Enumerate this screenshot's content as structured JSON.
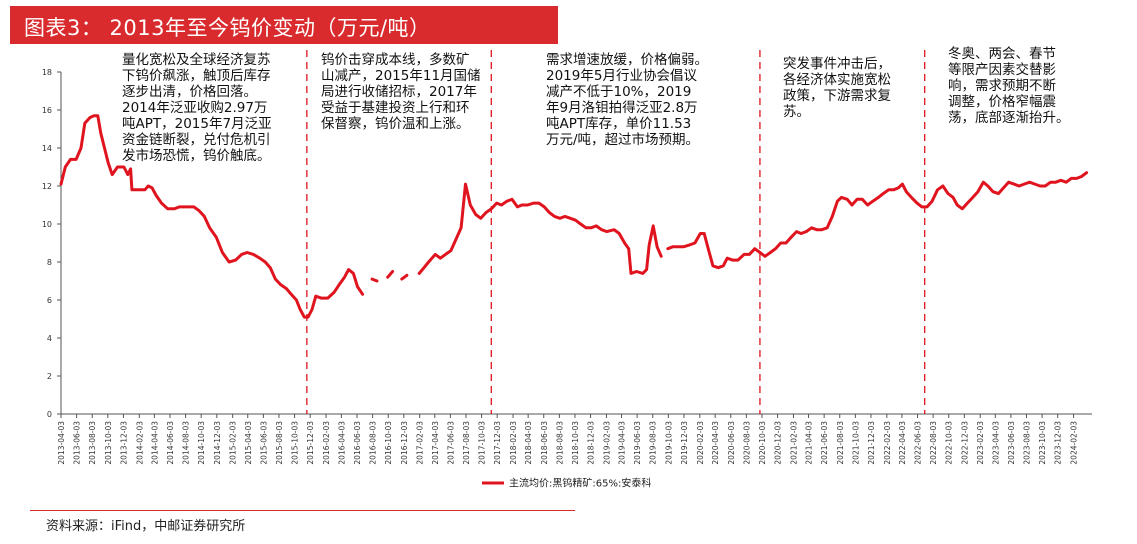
{
  "header": {
    "title": "图表3： 2013年至今钨价变动（万元/吨）"
  },
  "source": "资料来源：iFind，中邮证券研究所",
  "annotations": [
    {
      "lines": [
        "量化宽松及全球经济复苏",
        "下钨价飙涨，触顶后库存",
        "逐步出清，价格回落。",
        "2014年泛亚收购2.97万",
        "吨APT，2015年7月泛亚",
        "资金链断裂，兑付危机引",
        "发市场恐慌，钨价触底。"
      ]
    },
    {
      "lines": [
        "钨价击穿成本线，多数矿",
        "山减产，2015年11月国储",
        "局进行收储招标，2017年",
        "受益于基建投资上行和环",
        "保督察，钨价温和上涨。"
      ]
    },
    {
      "lines": [
        "需求增速放缓，价格偏弱。",
        "2019年5月行业协会倡议",
        "减产不低于10%，2019",
        "年9月洛钼拍得泛亚2.8万",
        "吨APT库存，单价11.53",
        "万元/吨，超过市场预期。"
      ]
    },
    {
      "lines": [
        "突发事件冲击后，",
        "各经济体实施宽松",
        "政策，下游需求复",
        "苏。"
      ]
    },
    {
      "lines": [
        "冬奥、两会、春节",
        "等限产因素交替影",
        "响，需求预期不断",
        "调整，价格窄幅震",
        "荡，底部逐渐抬升。"
      ]
    }
  ],
  "colors": {
    "accent": "#d92b2e",
    "line": "#e0141e"
  },
  "chart_data": {
    "type": "line",
    "ylim": [
      0,
      18
    ],
    "yticks": [
      0,
      2,
      4,
      6,
      8,
      10,
      12,
      14,
      16,
      18
    ],
    "xticks": [
      "2013-04-03",
      "2013-06-03",
      "2013-08-03",
      "2013-10-03",
      "2013-12-03",
      "2014-02-03",
      "2014-04-03",
      "2014-06-03",
      "2014-08-03",
      "2014-10-03",
      "2014-12-03",
      "2015-02-03",
      "2015-04-03",
      "2015-06-03",
      "2015-08-03",
      "2015-10-03",
      "2015-12-03",
      "2016-02-03",
      "2016-04-03",
      "2016-06-03",
      "2016-08-03",
      "2016-10-03",
      "2016-12-03",
      "2017-02-03",
      "2017-04-03",
      "2017-06-03",
      "2017-08-03",
      "2017-10-03",
      "2017-12-03",
      "2018-02-03",
      "2018-04-03",
      "2018-06-03",
      "2018-08-03",
      "2018-10-03",
      "2018-12-03",
      "2019-02-03",
      "2019-04-03",
      "2019-06-03",
      "2019-08-03",
      "2019-10-03",
      "2019-12-03",
      "2020-02-03",
      "2020-04-03",
      "2020-06-03",
      "2020-08-03",
      "2020-10-03",
      "2020-12-03",
      "2021-02-03",
      "2021-04-03",
      "2021-06-03",
      "2021-08-03",
      "2021-10-03",
      "2021-12-03",
      "2022-02-03",
      "2022-04-03",
      "2022-06-03",
      "2022-08-03",
      "2022-10-03",
      "2022-12-03",
      "2023-02-03",
      "2023-04-03",
      "2023-06-03",
      "2023-08-03",
      "2023-10-03",
      "2023-12-03",
      "2024-02-03"
    ],
    "grid": false,
    "legend_position": "bottom",
    "dividers": [
      "2015-11-20",
      "2017-11-10",
      "2020-09-25",
      "2022-07-01"
    ],
    "series": [
      {
        "name": "主流均价:黑钨精矿:65%:安泰科",
        "points": [
          [
            "2013-04-03",
            12.1
          ],
          [
            "2013-04-20",
            13.0
          ],
          [
            "2013-05-10",
            13.4
          ],
          [
            "2013-06-01",
            13.4
          ],
          [
            "2013-06-20",
            14.0
          ],
          [
            "2013-07-05",
            15.3
          ],
          [
            "2013-07-25",
            15.6
          ],
          [
            "2013-08-10",
            15.7
          ],
          [
            "2013-08-25",
            15.7
          ],
          [
            "2013-09-05",
            14.8
          ],
          [
            "2013-09-20",
            14.0
          ],
          [
            "2013-10-05",
            13.2
          ],
          [
            "2013-10-20",
            12.6
          ],
          [
            "2013-11-10",
            13.0
          ],
          [
            "2013-12-05",
            13.0
          ],
          [
            "2013-12-20",
            12.6
          ],
          [
            "2013-12-31",
            12.9
          ],
          [
            "2014-01-05",
            11.8
          ],
          [
            "2014-02-01",
            11.8
          ],
          [
            "2014-02-25",
            11.8
          ],
          [
            "2014-03-10",
            12.0
          ],
          [
            "2014-03-25",
            11.9
          ],
          [
            "2014-04-10",
            11.5
          ],
          [
            "2014-05-01",
            11.1
          ],
          [
            "2014-05-25",
            10.8
          ],
          [
            "2014-06-20",
            10.8
          ],
          [
            "2014-07-10",
            10.9
          ],
          [
            "2014-08-10",
            10.9
          ],
          [
            "2014-09-05",
            10.9
          ],
          [
            "2014-09-25",
            10.7
          ],
          [
            "2014-10-15",
            10.4
          ],
          [
            "2014-11-05",
            9.8
          ],
          [
            "2014-12-01",
            9.3
          ],
          [
            "2014-12-25",
            8.5
          ],
          [
            "2015-01-20",
            8.0
          ],
          [
            "2015-02-15",
            8.1
          ],
          [
            "2015-03-10",
            8.4
          ],
          [
            "2015-04-01",
            8.5
          ],
          [
            "2015-04-25",
            8.4
          ],
          [
            "2015-05-20",
            8.2
          ],
          [
            "2015-06-10",
            8.0
          ],
          [
            "2015-06-30",
            7.7
          ],
          [
            "2015-07-20",
            7.1
          ],
          [
            "2015-08-10",
            6.8
          ],
          [
            "2015-09-01",
            6.6
          ],
          [
            "2015-09-20",
            6.3
          ],
          [
            "2015-10-10",
            6.0
          ],
          [
            "2015-10-25",
            5.5
          ],
          [
            "2015-11-10",
            5.1
          ],
          [
            "2015-11-25",
            5.1
          ],
          [
            "2015-12-10",
            5.5
          ],
          [
            "2015-12-25",
            6.2
          ],
          [
            "2016-01-15",
            6.1
          ],
          [
            "2016-02-10",
            6.1
          ],
          [
            "2016-03-05",
            6.4
          ],
          [
            "2016-03-25",
            6.8
          ],
          [
            "2016-04-15",
            7.2
          ],
          [
            "2016-05-01",
            7.6
          ],
          [
            "2016-05-20",
            7.4
          ],
          [
            "2016-06-05",
            6.7
          ],
          [
            "2016-06-25",
            6.3
          ],
          [
            "2016-07-15",
            null
          ],
          [
            "2016-08-01",
            7.1
          ],
          [
            "2016-08-20",
            7.0
          ],
          [
            "2016-09-10",
            null
          ],
          [
            "2016-10-01",
            7.2
          ],
          [
            "2016-10-20",
            7.5
          ],
          [
            "2016-11-05",
            null
          ],
          [
            "2016-11-25",
            7.1
          ],
          [
            "2016-12-15",
            7.3
          ],
          [
            "2017-01-05",
            null
          ],
          [
            "2017-02-01",
            7.4
          ],
          [
            "2017-02-20",
            7.7
          ],
          [
            "2017-03-10",
            8.0
          ],
          [
            "2017-04-05",
            8.4
          ],
          [
            "2017-04-25",
            8.2
          ],
          [
            "2017-05-15",
            8.4
          ],
          [
            "2017-06-05",
            8.6
          ],
          [
            "2017-06-25",
            9.2
          ],
          [
            "2017-07-15",
            9.8
          ],
          [
            "2017-08-01",
            12.1
          ],
          [
            "2017-08-20",
            11.0
          ],
          [
            "2017-09-10",
            10.5
          ],
          [
            "2017-09-30",
            10.3
          ],
          [
            "2017-10-20",
            10.6
          ],
          [
            "2017-11-10",
            10.8
          ],
          [
            "2017-12-01",
            11.1
          ],
          [
            "2017-12-20",
            11.0
          ],
          [
            "2018-01-10",
            11.2
          ],
          [
            "2018-01-30",
            11.3
          ],
          [
            "2018-02-20",
            10.9
          ],
          [
            "2018-03-10",
            11.0
          ],
          [
            "2018-04-01",
            11.0
          ],
          [
            "2018-04-25",
            11.1
          ],
          [
            "2018-05-15",
            11.1
          ],
          [
            "2018-06-05",
            10.9
          ],
          [
            "2018-06-25",
            10.6
          ],
          [
            "2018-07-15",
            10.4
          ],
          [
            "2018-08-05",
            10.3
          ],
          [
            "2018-08-25",
            10.4
          ],
          [
            "2018-09-15",
            10.3
          ],
          [
            "2018-10-05",
            10.2
          ],
          [
            "2018-10-25",
            10.0
          ],
          [
            "2018-11-15",
            9.8
          ],
          [
            "2018-12-05",
            9.8
          ],
          [
            "2018-12-25",
            9.9
          ],
          [
            "2019-01-15",
            9.7
          ],
          [
            "2019-02-05",
            9.6
          ],
          [
            "2019-03-05",
            9.7
          ],
          [
            "2019-03-25",
            9.5
          ],
          [
            "2019-04-15",
            9.0
          ],
          [
            "2019-05-01",
            8.7
          ],
          [
            "2019-05-10",
            7.4
          ],
          [
            "2019-06-01",
            7.5
          ],
          [
            "2019-06-25",
            7.4
          ],
          [
            "2019-07-10",
            7.6
          ],
          [
            "2019-07-20",
            8.9
          ],
          [
            "2019-08-05",
            9.9
          ],
          [
            "2019-08-20",
            8.8
          ],
          [
            "2019-09-05",
            8.3
          ],
          [
            "2019-09-15",
            null
          ],
          [
            "2019-10-01",
            8.7
          ],
          [
            "2019-10-20",
            8.8
          ],
          [
            "2019-11-10",
            8.8
          ],
          [
            "2019-12-01",
            8.8
          ],
          [
            "2019-12-25",
            8.9
          ],
          [
            "2020-01-15",
            9.0
          ],
          [
            "2020-02-05",
            9.5
          ],
          [
            "2020-02-20",
            9.5
          ],
          [
            "2020-03-05",
            8.8
          ],
          [
            "2020-03-25",
            7.8
          ],
          [
            "2020-04-15",
            7.7
          ],
          [
            "2020-05-05",
            7.8
          ],
          [
            "2020-05-20",
            8.2
          ],
          [
            "2020-06-10",
            8.1
          ],
          [
            "2020-07-01",
            8.1
          ],
          [
            "2020-07-25",
            8.4
          ],
          [
            "2020-08-15",
            8.4
          ],
          [
            "2020-09-05",
            8.7
          ],
          [
            "2020-09-25",
            8.5
          ],
          [
            "2020-10-15",
            8.3
          ],
          [
            "2020-11-05",
            8.5
          ],
          [
            "2020-11-25",
            8.7
          ],
          [
            "2020-12-15",
            9.0
          ],
          [
            "2021-01-05",
            9.0
          ],
          [
            "2021-01-25",
            9.3
          ],
          [
            "2021-02-15",
            9.6
          ],
          [
            "2021-03-05",
            9.5
          ],
          [
            "2021-03-25",
            9.6
          ],
          [
            "2021-04-15",
            9.8
          ],
          [
            "2021-05-05",
            9.7
          ],
          [
            "2021-05-25",
            9.7
          ],
          [
            "2021-06-15",
            9.8
          ],
          [
            "2021-07-05",
            10.4
          ],
          [
            "2021-07-25",
            11.2
          ],
          [
            "2021-08-10",
            11.4
          ],
          [
            "2021-09-01",
            11.3
          ],
          [
            "2021-09-20",
            11.0
          ],
          [
            "2021-10-10",
            11.3
          ],
          [
            "2021-10-30",
            11.3
          ],
          [
            "2021-11-20",
            11.0
          ],
          [
            "2021-12-10",
            11.2
          ],
          [
            "2022-01-01",
            11.4
          ],
          [
            "2022-01-20",
            11.6
          ],
          [
            "2022-02-10",
            11.8
          ],
          [
            "2022-03-01",
            11.8
          ],
          [
            "2022-03-20",
            11.9
          ],
          [
            "2022-04-05",
            12.1
          ],
          [
            "2022-04-20",
            11.7
          ],
          [
            "2022-05-10",
            11.4
          ],
          [
            "2022-06-01",
            11.1
          ],
          [
            "2022-06-20",
            10.9
          ],
          [
            "2022-07-10",
            10.9
          ],
          [
            "2022-07-30",
            11.2
          ],
          [
            "2022-08-20",
            11.8
          ],
          [
            "2022-09-10",
            12.0
          ],
          [
            "2022-09-30",
            11.6
          ],
          [
            "2022-10-20",
            11.4
          ],
          [
            "2022-11-05",
            11.0
          ],
          [
            "2022-11-25",
            10.8
          ],
          [
            "2022-12-15",
            11.1
          ],
          [
            "2023-01-05",
            11.4
          ],
          [
            "2023-01-25",
            11.7
          ],
          [
            "2023-02-15",
            12.2
          ],
          [
            "2023-03-05",
            12.0
          ],
          [
            "2023-03-25",
            11.7
          ],
          [
            "2023-04-15",
            11.6
          ],
          [
            "2023-05-05",
            11.9
          ],
          [
            "2023-05-25",
            12.2
          ],
          [
            "2023-06-15",
            12.1
          ],
          [
            "2023-07-05",
            12.0
          ],
          [
            "2023-07-25",
            12.1
          ],
          [
            "2023-08-15",
            12.2
          ],
          [
            "2023-09-05",
            12.1
          ],
          [
            "2023-09-25",
            12.0
          ],
          [
            "2023-10-15",
            12.0
          ],
          [
            "2023-11-05",
            12.2
          ],
          [
            "2023-11-25",
            12.2
          ],
          [
            "2023-12-15",
            12.3
          ],
          [
            "2024-01-05",
            12.2
          ],
          [
            "2024-01-25",
            12.4
          ],
          [
            "2024-02-15",
            12.4
          ],
          [
            "2024-03-05",
            12.5
          ],
          [
            "2024-03-25",
            12.7
          ]
        ]
      }
    ]
  }
}
